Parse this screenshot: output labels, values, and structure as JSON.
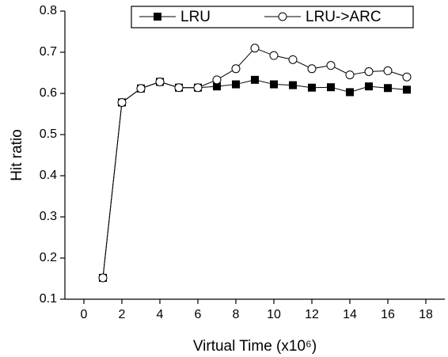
{
  "chart_data": {
    "type": "line",
    "x_label": "Virtual Time (x10⁶)",
    "y_label": "Hit ratio",
    "x": [
      1,
      2,
      3,
      4,
      5,
      6,
      7,
      8,
      9,
      10,
      11,
      12,
      13,
      14,
      15,
      16,
      17
    ],
    "series": [
      {
        "name": "LRU",
        "color": "#000000",
        "marker": "filled-square",
        "values": [
          0.152,
          0.578,
          0.612,
          0.628,
          0.614,
          0.614,
          0.617,
          0.622,
          0.633,
          0.622,
          0.62,
          0.614,
          0.615,
          0.603,
          0.617,
          0.613,
          0.609
        ]
      },
      {
        "name": "LRU->ARC",
        "color": "#000000",
        "marker": "open-circle",
        "values": [
          0.152,
          0.578,
          0.612,
          0.628,
          0.614,
          0.614,
          0.633,
          0.66,
          0.71,
          0.692,
          0.682,
          0.66,
          0.668,
          0.645,
          0.653,
          0.655,
          0.64
        ]
      }
    ],
    "xlim": [
      -1,
      19
    ],
    "xticks": [
      0,
      2,
      4,
      6,
      8,
      10,
      12,
      14,
      16,
      18
    ],
    "ylim": [
      0.1,
      0.8
    ],
    "yticks": [
      0.1,
      0.2,
      0.3,
      0.4,
      0.5,
      0.6,
      0.7,
      0.8
    ],
    "legend_position": "top"
  }
}
